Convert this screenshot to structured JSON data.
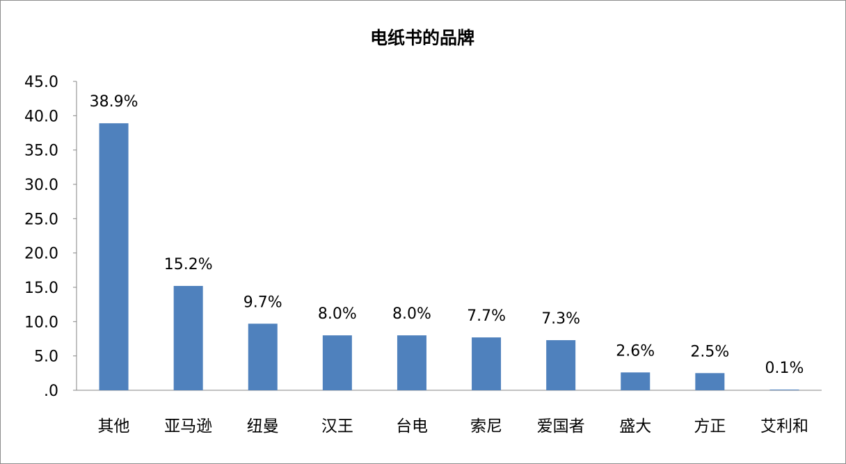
{
  "chart_data": {
    "type": "bar",
    "title": "电纸书的品牌",
    "categories": [
      "其他",
      "亚马逊",
      "纽曼",
      "汉王",
      "台电",
      "索尼",
      "爱国者",
      "盛大",
      "方正",
      "艾利和"
    ],
    "values": [
      38.9,
      15.2,
      9.7,
      8.0,
      8.0,
      7.7,
      7.3,
      2.6,
      2.5,
      0.1
    ],
    "data_labels": [
      "38.9%",
      "15.2%",
      "9.7%",
      "8.0%",
      "8.0%",
      "7.7%",
      "7.3%",
      "2.6%",
      "2.5%",
      "0.1%"
    ],
    "ylim": [
      0,
      45
    ],
    "yticks": [
      ".0",
      "5.0",
      "10.0",
      "15.0",
      "20.0",
      "25.0",
      "30.0",
      "35.0",
      "40.0",
      "45.0"
    ],
    "bar_color": "#4f81bd",
    "grid": false,
    "legend": "none"
  }
}
